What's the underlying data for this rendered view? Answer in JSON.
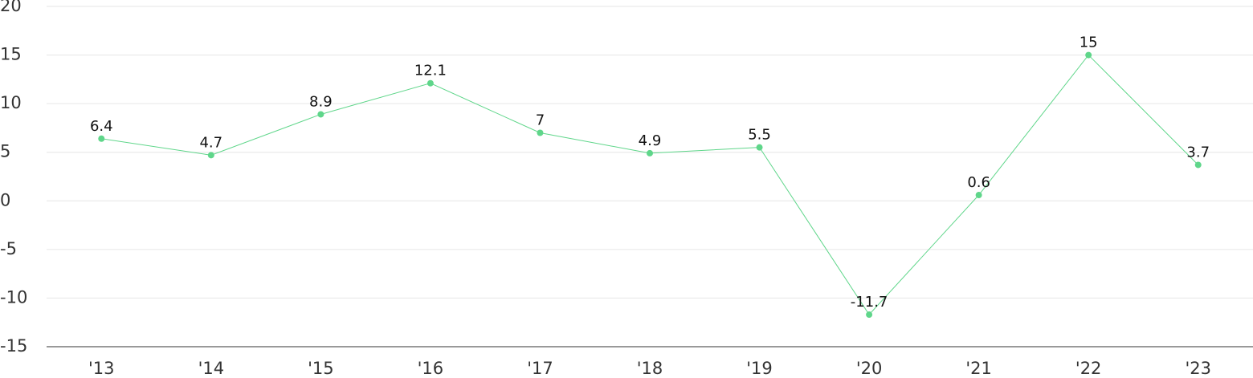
{
  "chart_data": {
    "type": "line",
    "categories": [
      "'13",
      "'14",
      "'15",
      "'16",
      "'17",
      "'18",
      "'19",
      "'20",
      "'21",
      "'22",
      "'23"
    ],
    "values": [
      6.4,
      4.7,
      8.9,
      12.1,
      7,
      4.9,
      5.5,
      -11.7,
      0.6,
      15,
      3.7
    ],
    "color": "#5fd68a",
    "ylim": [
      -15,
      20
    ],
    "yticks": [
      -15,
      -10,
      -5,
      0,
      5,
      10,
      15,
      20
    ],
    "grid": true
  }
}
